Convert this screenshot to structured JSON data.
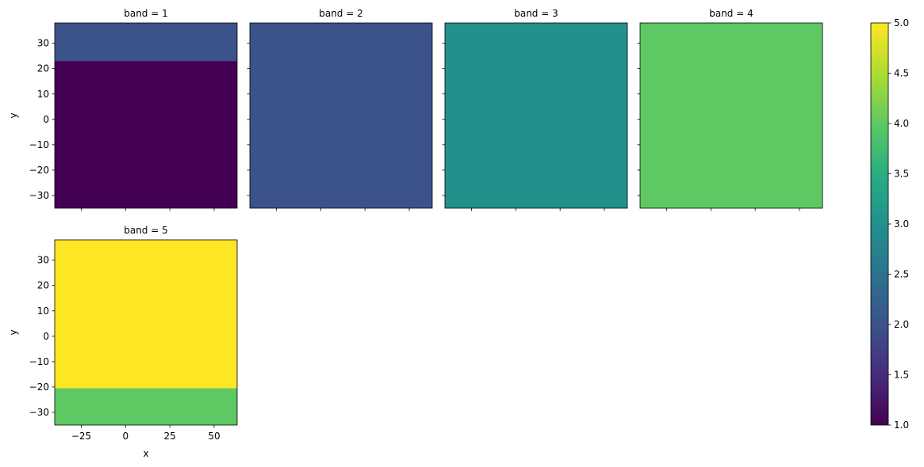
{
  "chart_data": {
    "type": "heatmap",
    "layout": "facet-grid",
    "facet_var": "band",
    "xlabel": "x",
    "ylabel": "y",
    "xlim": [
      -40,
      63
    ],
    "ylim": [
      -35,
      38
    ],
    "xticks": [
      -25,
      0,
      25,
      50
    ],
    "xtick_labels": [
      "−25",
      "0",
      "25",
      "50"
    ],
    "yticks": [
      -30,
      -20,
      -10,
      0,
      10,
      20,
      30
    ],
    "ytick_labels": [
      "−30",
      "−20",
      "−10",
      "0",
      "10",
      "20",
      "30"
    ],
    "colormap": "viridis",
    "color_range": [
      1.0,
      5.0
    ],
    "colorbar_ticks": [
      1.0,
      1.5,
      2.0,
      2.5,
      3.0,
      3.5,
      4.0,
      4.5,
      5.0
    ],
    "colorbar_tick_labels": [
      "1.0",
      "1.5",
      "2.0",
      "2.5",
      "3.0",
      "3.5",
      "4.0",
      "4.5",
      "5.0"
    ],
    "panels": [
      {
        "title": "band = 1",
        "regions": [
          {
            "y_from": 23,
            "y_to": 38,
            "value": 2
          },
          {
            "y_from": -35,
            "y_to": 23,
            "value": 1
          }
        ]
      },
      {
        "title": "band = 2",
        "regions": [
          {
            "y_from": -35,
            "y_to": 38,
            "value": 2
          }
        ]
      },
      {
        "title": "band = 3",
        "regions": [
          {
            "y_from": -35,
            "y_to": 38,
            "value": 3
          }
        ]
      },
      {
        "title": "band = 4",
        "regions": [
          {
            "y_from": -35,
            "y_to": 38,
            "value": 4
          }
        ]
      },
      {
        "title": "band = 5",
        "regions": [
          {
            "y_from": -20.5,
            "y_to": 38,
            "value": 5
          },
          {
            "y_from": -35,
            "y_to": -20.5,
            "value": 4
          }
        ]
      }
    ]
  }
}
